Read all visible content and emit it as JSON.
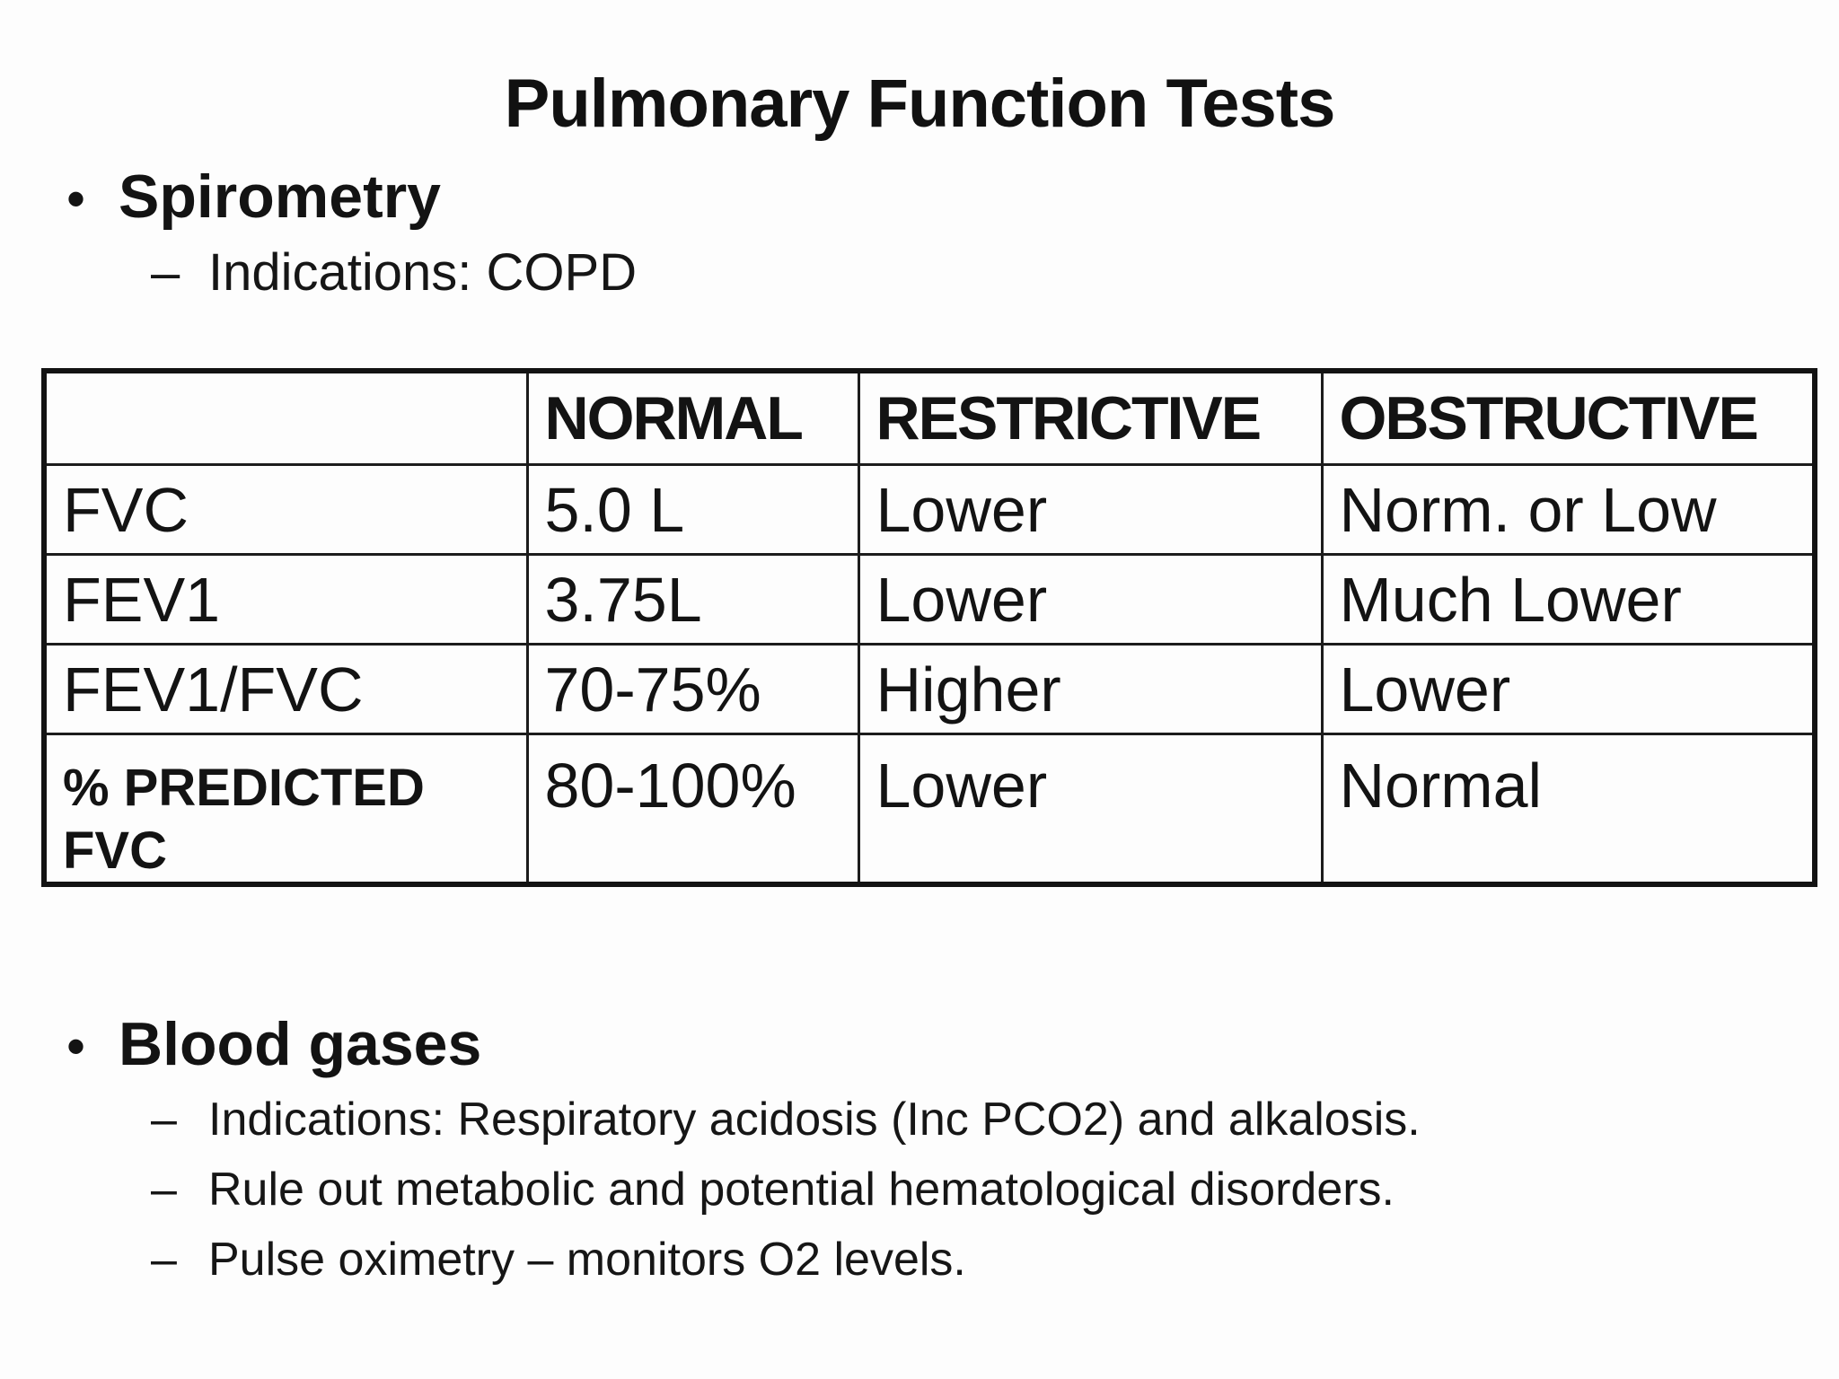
{
  "slide": {
    "title": "Pulmonary Function Tests",
    "sections": [
      {
        "bullet": "Spirometry",
        "subitems": [
          "Indications: COPD"
        ]
      },
      {
        "bullet": "Blood gases",
        "subitems": [
          "Indications: Respiratory acidosis (Inc PCO2) and alkalosis.",
          "Rule out metabolic and potential hematological disorders.",
          "Pulse oximetry – monitors O2 levels."
        ]
      }
    ],
    "table": {
      "headers": [
        "",
        "NORMAL",
        "RESTRICTIVE",
        "OBSTRUCTIVE"
      ],
      "rows": [
        [
          "FVC",
          "5.0 L",
          "Lower",
          "Norm. or Low"
        ],
        [
          "FEV1",
          "3.75L",
          "Lower",
          "Much Lower"
        ],
        [
          "FEV1/FVC",
          "70-75%",
          "Higher",
          "Lower"
        ],
        [
          "% PREDICTED FVC",
          "80-100%",
          "Lower",
          "Normal"
        ]
      ]
    },
    "glyphs": {
      "bullet": "•",
      "dash": "–"
    },
    "colors": {
      "background": "#fdfdfd",
      "text": "#131313",
      "border": "#1c1c1c"
    }
  }
}
